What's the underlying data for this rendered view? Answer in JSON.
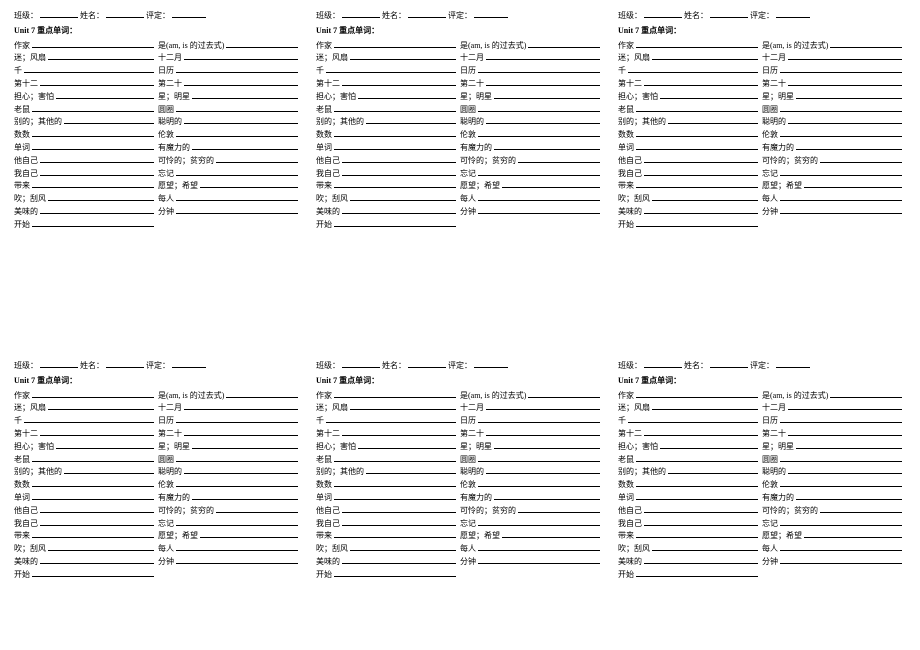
{
  "header": {
    "class_label": "班级：",
    "name_label": "姓名：",
    "rating_label": "评定："
  },
  "title": "Unit 7  重点单词：",
  "rows": [
    {
      "l": "作家",
      "r": "是(am, is 的过去式)"
    },
    {
      "l": "迷；风扇",
      "r": "十二月"
    },
    {
      "l": "千",
      "r": "日历"
    },
    {
      "l": "第十二",
      "r": "第二十"
    },
    {
      "l": "担心；害怕",
      "r": "星；明星"
    },
    {
      "l": "老鼠",
      "r": "圆圈"
    },
    {
      "l": "别的；其他的",
      "r": "聪明的"
    },
    {
      "l": "数数",
      "r": "伦敦"
    },
    {
      "l": "单词",
      "r": "有魔力的"
    },
    {
      "l": "他自己",
      "r": "可怜的；贫穷的"
    },
    {
      "l": "我自己",
      "r": "忘记"
    },
    {
      "l": "带来",
      "r": "愿望；希望"
    },
    {
      "l": "吹；刮风",
      "r": "每人"
    },
    {
      "l": "美味的",
      "r": "分钟"
    },
    {
      "l": "开始",
      "r": ""
    }
  ]
}
